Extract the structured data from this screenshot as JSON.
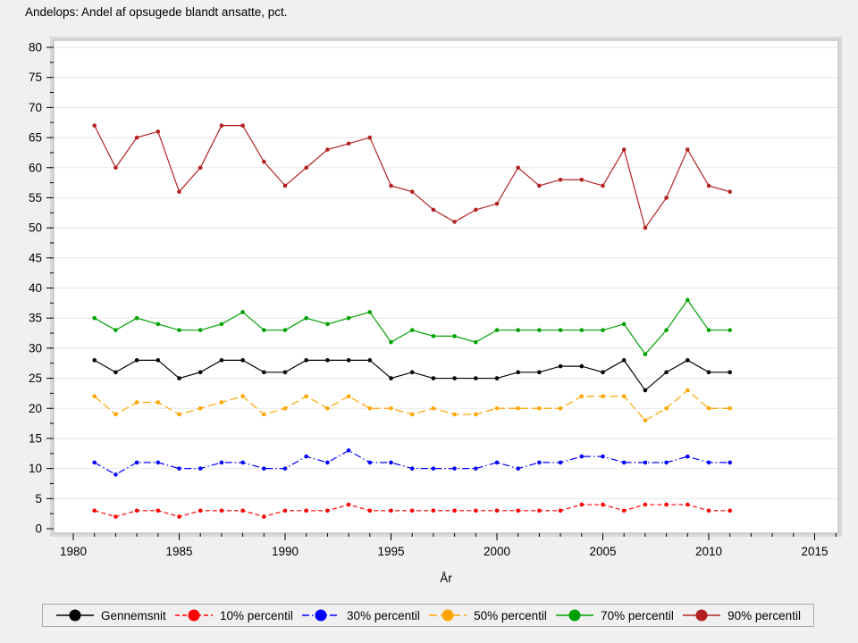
{
  "title": "Andelops: Andel af opsugede blandt ansatte, pct.",
  "chart_data": {
    "type": "line",
    "title": "Andelops: Andel af opsugede blandt ansatte, pct.",
    "xlabel": "År",
    "ylabel": "",
    "xlim": [
      1979,
      2016
    ],
    "ylim": [
      0,
      80
    ],
    "x_major_ticks": [
      1980,
      1985,
      1990,
      1995,
      2000,
      2005,
      2010,
      2015
    ],
    "y_major_ticks": [
      0,
      5,
      10,
      15,
      20,
      25,
      30,
      35,
      40,
      45,
      50,
      55,
      60,
      65,
      70,
      75,
      80
    ],
    "grid": true,
    "legend_position": "bottom",
    "x": [
      1981,
      1982,
      1983,
      1984,
      1985,
      1986,
      1987,
      1988,
      1989,
      1990,
      1991,
      1992,
      1993,
      1994,
      1995,
      1996,
      1997,
      1998,
      1999,
      2000,
      2001,
      2002,
      2003,
      2004,
      2005,
      2006,
      2007,
      2008,
      2009,
      2010,
      2011
    ],
    "series": [
      {
        "name": "Gennemsnit",
        "color": "#000000",
        "dash": "solid",
        "values": [
          28,
          26,
          28,
          28,
          25,
          26,
          28,
          28,
          26,
          26,
          28,
          28,
          28,
          28,
          25,
          26,
          25,
          25,
          25,
          25,
          26,
          26,
          27,
          27,
          26,
          28,
          23,
          26,
          28,
          26,
          26
        ]
      },
      {
        "name": "10% percentil",
        "color": "#ff0000",
        "dash": "dash",
        "values": [
          3,
          2,
          3,
          3,
          2,
          3,
          3,
          3,
          2,
          3,
          3,
          3,
          4,
          3,
          3,
          3,
          3,
          3,
          3,
          3,
          3,
          3,
          3,
          4,
          4,
          3,
          4,
          4,
          4,
          3,
          3
        ]
      },
      {
        "name": "30% percentil",
        "color": "#0000ff",
        "dash": "dashdot",
        "values": [
          11,
          9,
          11,
          11,
          10,
          10,
          11,
          11,
          10,
          10,
          12,
          11,
          13,
          11,
          11,
          10,
          10,
          10,
          10,
          11,
          10,
          11,
          11,
          12,
          12,
          11,
          11,
          11,
          12,
          11,
          11
        ]
      },
      {
        "name": "50% percentil",
        "color": "#ffa500",
        "dash": "longdash",
        "values": [
          22,
          19,
          21,
          21,
          19,
          20,
          21,
          22,
          19,
          20,
          22,
          20,
          22,
          20,
          20,
          19,
          20,
          19,
          19,
          20,
          20,
          20,
          20,
          22,
          22,
          22,
          18,
          20,
          23,
          20,
          20
        ]
      },
      {
        "name": "70% percentil",
        "color": "#00a000",
        "dash": "solid",
        "values": [
          35,
          33,
          35,
          34,
          33,
          33,
          34,
          36,
          33,
          33,
          35,
          34,
          35,
          36,
          31,
          33,
          32,
          32,
          31,
          33,
          33,
          33,
          33,
          33,
          33,
          34,
          29,
          33,
          38,
          33,
          33
        ]
      },
      {
        "name": "90% percentil",
        "color": "#b22222",
        "dash": "solid",
        "values": [
          67,
          60,
          65,
          66,
          56,
          60,
          67,
          67,
          61,
          57,
          60,
          63,
          64,
          65,
          57,
          56,
          53,
          51,
          53,
          54,
          60,
          57,
          58,
          58,
          57,
          63,
          50,
          55,
          63,
          57,
          56
        ]
      }
    ],
    "colors": {
      "background": "#f0f0f0",
      "plot_background": "#ffffff",
      "gridline": "#e7e7e7",
      "frame": "#a9a9a9"
    }
  }
}
